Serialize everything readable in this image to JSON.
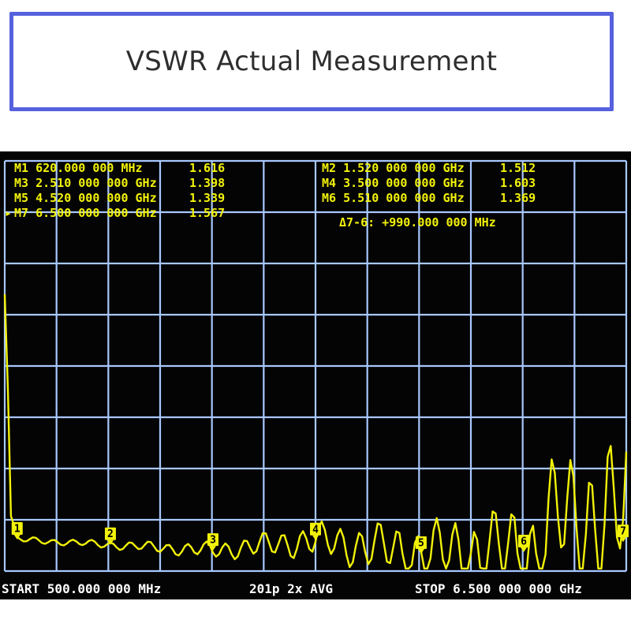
{
  "title": "VSWR Actual Measurement",
  "markers": [
    {
      "id": "M1",
      "freq": "620.000 000 MHz",
      "value": "1.616",
      "active": false
    },
    {
      "id": "M2",
      "freq": "1.520 000 000 GHz",
      "value": "1.512",
      "active": false
    },
    {
      "id": "M3",
      "freq": "2.510 000 000 GHz",
      "value": "1.398",
      "active": false
    },
    {
      "id": "M4",
      "freq": "3.500 000 000 GHz",
      "value": "1.603",
      "active": false
    },
    {
      "id": "M5",
      "freq": "4.520 000 000 GHz",
      "value": "1.339",
      "active": false
    },
    {
      "id": "M6",
      "freq": "5.510 000 000 GHz",
      "value": "1.369",
      "active": false
    },
    {
      "id": "M7",
      "freq": "6.500 000 000 GHz",
      "value": "1.567",
      "active": true
    }
  ],
  "delta": "Δ7-6: +990.000 000 MHz",
  "status": {
    "start": "START  500.000 000 MHz",
    "points": "201p  2x AVG",
    "stop": "STOP 6.500 000 000 GHz"
  },
  "colors": {
    "trace": "#f2f20a",
    "grid": "#a8c8ff",
    "screen": "#040404",
    "text": "#f2f20a",
    "status": "#ffffff",
    "title_border": "#5561dd"
  },
  "chart_data": {
    "type": "line",
    "x_range_hz": [
      500000000,
      6500000000
    ],
    "points": 201,
    "marker_labels": [
      "1",
      "2",
      "3",
      "4",
      "5",
      "6",
      "7"
    ],
    "marker_freqs_ghz": [
      0.62,
      1.52,
      2.51,
      3.5,
      4.52,
      5.51,
      6.5
    ],
    "marker_vswr": [
      1.616,
      1.512,
      1.398,
      1.603,
      1.339,
      1.369,
      1.567
    ],
    "grid": true
  }
}
